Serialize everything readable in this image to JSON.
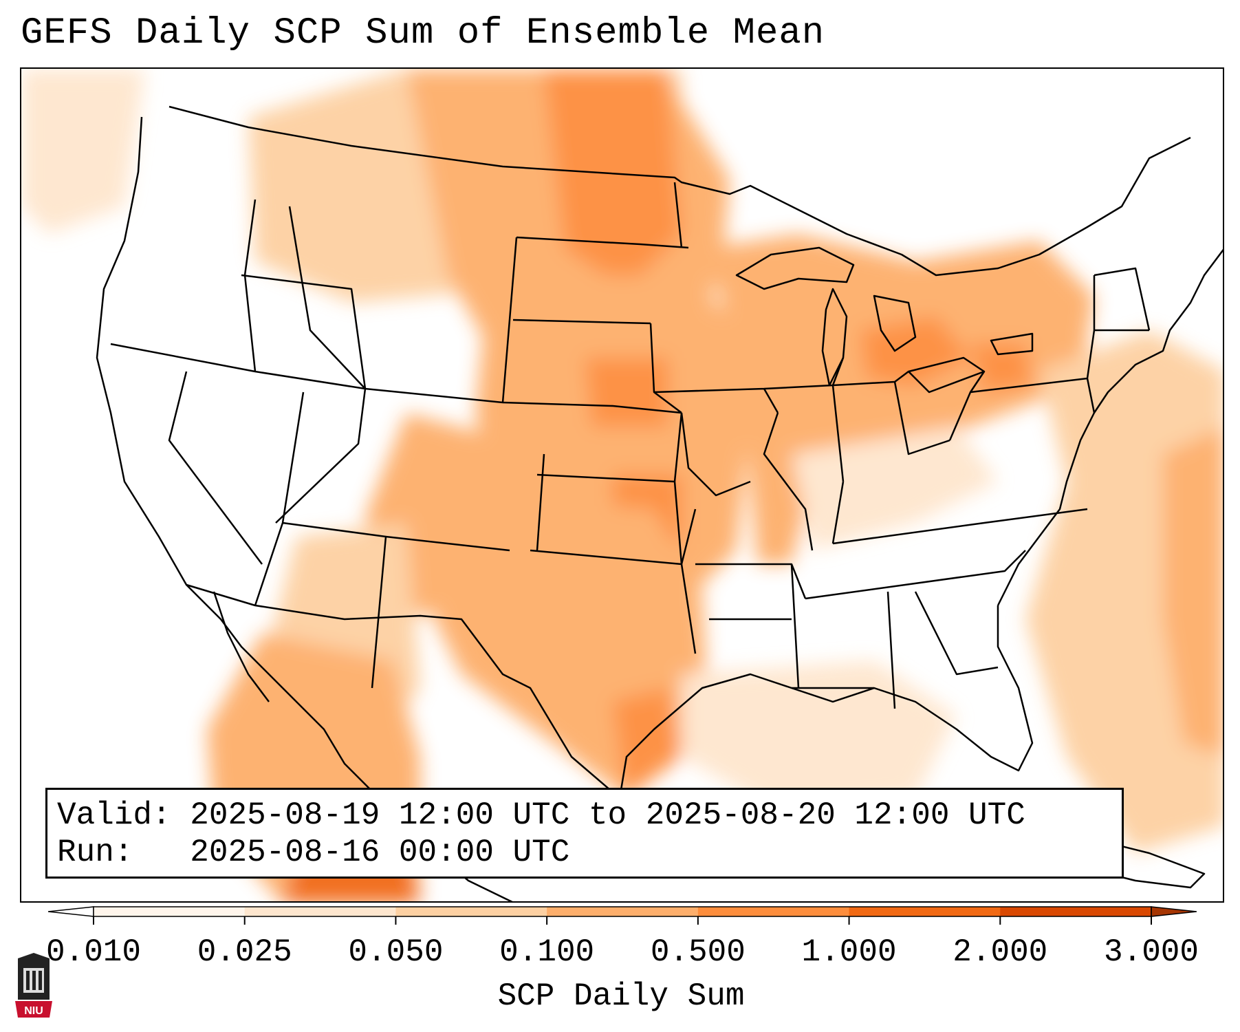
{
  "title": "GEFS Daily SCP Sum of Ensemble Mean",
  "info": {
    "valid_label": "Valid:",
    "valid_value": "2025-08-19 12:00 UTC to 2025-08-20 12:00 UTC",
    "run_label": "Run:",
    "run_value": "2025-08-16 00:00 UTC"
  },
  "colorbar": {
    "label": "SCP Daily Sum",
    "ticks": [
      "0.010",
      "0.025",
      "0.050",
      "0.100",
      "0.500",
      "1.000",
      "2.000",
      "3.000"
    ],
    "colors": [
      "#fff5eb",
      "#fee6ce",
      "#fdd0a2",
      "#fdae6b",
      "#fd8d3c",
      "#f16913",
      "#d94801",
      "#a63603"
    ]
  },
  "logo": {
    "text": "NIU",
    "color": "#c8102e"
  }
}
